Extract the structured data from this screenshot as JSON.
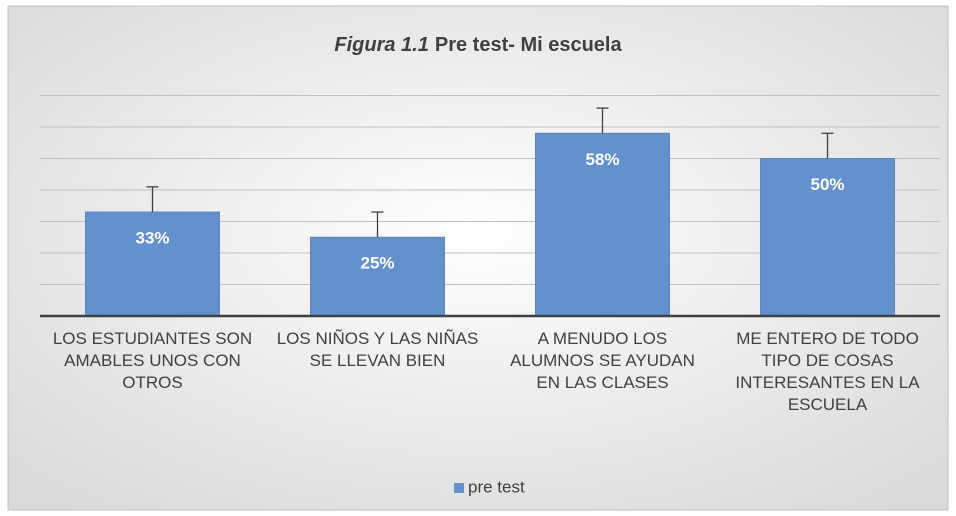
{
  "chart_data": {
    "type": "bar",
    "title_prefix": "Figura 1.1",
    "title": "Pre test- Mi escuela",
    "categories": [
      "LOS ESTUDIANTES SON AMABLES UNOS CON OTROS",
      "LOS NIÑOS Y LAS NIÑAS SE LLEVAN BIEN",
      "A MENUDO LOS ALUMNOS SE AYUDAN EN LAS CLASES",
      "ME ENTERO DE TODO TIPO DE COSAS INTERESANTES EN LA ESCUELA"
    ],
    "series": [
      {
        "name": "pre test",
        "color": "#6391cd",
        "values": [
          33,
          25,
          58,
          50
        ],
        "value_labels": [
          "33%",
          "25%",
          "58%",
          "50%"
        ],
        "errors": [
          8,
          8,
          8,
          8
        ]
      }
    ],
    "ylim": [
      0,
      70
    ],
    "yticks": [
      0,
      10,
      20,
      30,
      40,
      50,
      60,
      70
    ],
    "grid": true,
    "legend": "bottom"
  }
}
